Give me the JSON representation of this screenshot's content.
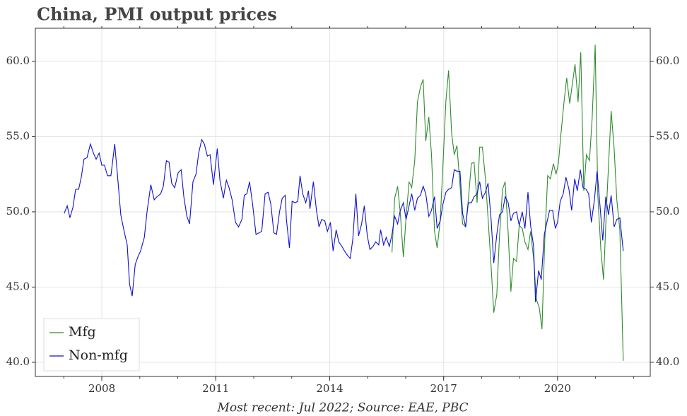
{
  "chart_data": {
    "type": "line",
    "title": "China, PMI output prices",
    "caption": "Most recent: Jul 2022; Source: EAE, PBC",
    "xlim": [
      2006.25,
      2022.44
    ],
    "xticks": [
      2008,
      2011,
      2014,
      2017,
      2020
    ],
    "xticks_minor": [
      2007,
      2008,
      2009,
      2010,
      2011,
      2012,
      2013,
      2014,
      2015,
      2016,
      2017,
      2018,
      2019,
      2020,
      2021,
      2022
    ],
    "ylim": [
      39.06,
      62.2
    ],
    "yticks": [
      {
        "value": 40,
        "label": "40.0"
      },
      {
        "value": 45,
        "label": "45.0"
      },
      {
        "value": 50,
        "label": "50.0"
      },
      {
        "value": 55,
        "label": "55.0"
      },
      {
        "value": 60,
        "label": "60.0"
      }
    ],
    "grid": true,
    "legend": "lower left",
    "series": [
      {
        "name": "Mfg",
        "color": "#2e8b2e",
        "x": [
          2015.64,
          2015.71,
          2015.79,
          2015.86,
          2015.94,
          2016.01,
          2016.09,
          2016.16,
          2016.24,
          2016.31,
          2016.39,
          2016.46,
          2016.53,
          2016.61,
          2016.68,
          2016.76,
          2016.83,
          2016.91,
          2016.98,
          2017.06,
          2017.13,
          2017.21,
          2017.28,
          2017.35,
          2017.43,
          2017.5,
          2017.58,
          2017.65,
          2017.73,
          2017.8,
          2017.88,
          2017.95,
          2018.02,
          2018.1,
          2018.17,
          2018.25,
          2018.32,
          2018.4,
          2018.47,
          2018.55,
          2018.62,
          2018.7,
          2018.77,
          2018.84,
          2018.92,
          2018.99,
          2019.07,
          2019.14,
          2019.22,
          2019.29,
          2019.37,
          2019.44,
          2019.52,
          2019.59,
          2019.66,
          2019.74,
          2019.81,
          2019.89,
          2019.96,
          2020.02,
          2020.09,
          2020.17,
          2020.24,
          2020.32,
          2020.39,
          2020.46,
          2020.54,
          2020.61,
          2020.69,
          2020.76,
          2020.84,
          2020.91,
          2020.99,
          2021.06,
          2021.14,
          2021.21,
          2021.29,
          2021.36,
          2021.41,
          2021.49,
          2021.56,
          2021.64,
          2021.73
        ],
        "values": [
          47.3,
          50.9,
          51.7,
          49.9,
          47.0,
          49.6,
          52.0,
          51.6,
          53.4,
          57.3,
          58.3,
          58.8,
          54.7,
          56.3,
          53.8,
          48.7,
          47.6,
          49.4,
          53.0,
          57.4,
          59.4,
          55.2,
          53.8,
          54.4,
          51.8,
          49.2,
          49.0,
          50.8,
          53.2,
          53.3,
          50.6,
          54.3,
          54.3,
          52.2,
          49.6,
          46.4,
          43.3,
          44.5,
          48.4,
          51.5,
          52.0,
          48.6,
          44.7,
          46.9,
          46.7,
          49.1,
          48.9,
          48.0,
          47.5,
          48.7,
          46.9,
          44.2,
          43.6,
          42.2,
          47.9,
          52.4,
          52.2,
          53.2,
          52.5,
          53.2,
          55.2,
          57.3,
          58.9,
          57.2,
          58.5,
          59.8,
          57.3,
          60.6,
          51.4,
          53.8,
          53.4,
          56.2,
          61.1,
          51.1,
          47.5,
          45.5,
          50.4,
          54.1,
          56.7,
          54.2,
          50.8,
          48.8,
          40.1
        ]
      },
      {
        "name": "Non-mfg",
        "color": "#1010d0",
        "x": [
          2007.01,
          2007.09,
          2007.16,
          2007.24,
          2007.31,
          2007.39,
          2007.46,
          2007.53,
          2007.61,
          2007.7,
          2007.78,
          2007.85,
          2007.93,
          2008.0,
          2008.07,
          2008.15,
          2008.24,
          2008.34,
          2008.41,
          2008.5,
          2008.58,
          2008.67,
          2008.73,
          2008.8,
          2008.88,
          2008.95,
          2009.02,
          2009.12,
          2009.19,
          2009.29,
          2009.38,
          2009.45,
          2009.55,
          2009.62,
          2009.7,
          2009.77,
          2009.84,
          2009.92,
          2010.01,
          2010.09,
          2010.16,
          2010.24,
          2010.31,
          2010.4,
          2010.48,
          2010.55,
          2010.63,
          2010.7,
          2010.78,
          2010.85,
          2010.94,
          2011.04,
          2011.11,
          2011.2,
          2011.28,
          2011.35,
          2011.43,
          2011.52,
          2011.6,
          2011.69,
          2011.75,
          2011.82,
          2011.89,
          2011.97,
          2012.06,
          2012.14,
          2012.21,
          2012.3,
          2012.38,
          2012.45,
          2012.53,
          2012.6,
          2012.68,
          2012.75,
          2012.83,
          2012.86,
          2012.94,
          2013.01,
          2013.09,
          2013.16,
          2013.22,
          2013.29,
          2013.37,
          2013.44,
          2013.48,
          2013.57,
          2013.65,
          2013.72,
          2013.79,
          2013.87,
          2013.94,
          2014.02,
          2014.09,
          2014.17,
          2014.24,
          2014.32,
          2014.39,
          2014.47,
          2014.54,
          2014.61,
          2014.69,
          2014.76,
          2014.84,
          2014.91,
          2014.99,
          2015.06,
          2015.14,
          2015.21,
          2015.29,
          2015.34,
          2015.42,
          2015.49,
          2015.57,
          2015.64,
          2015.71,
          2015.79,
          2015.86,
          2015.94,
          2016.01,
          2016.09,
          2016.16,
          2016.24,
          2016.31,
          2016.39,
          2016.46,
          2016.53,
          2016.61,
          2016.68,
          2016.76,
          2016.83,
          2016.91,
          2016.98,
          2017.06,
          2017.13,
          2017.21,
          2017.28,
          2017.35,
          2017.43,
          2017.5,
          2017.58,
          2017.65,
          2017.73,
          2017.8,
          2017.88,
          2017.95,
          2018.02,
          2018.1,
          2018.17,
          2018.25,
          2018.32,
          2018.4,
          2018.47,
          2018.55,
          2018.62,
          2018.7,
          2018.77,
          2018.84,
          2018.92,
          2018.99,
          2019.07,
          2019.14,
          2019.22,
          2019.29,
          2019.37,
          2019.42,
          2019.5,
          2019.57,
          2019.65,
          2019.72,
          2019.79,
          2019.87,
          2019.94,
          2020.0,
          2020.07,
          2020.15,
          2020.22,
          2020.3,
          2020.37,
          2020.45,
          2020.52,
          2020.6,
          2020.67,
          2020.75,
          2020.82,
          2020.89,
          2020.97,
          2021.04,
          2021.12,
          2021.19,
          2021.27,
          2021.34,
          2021.41,
          2021.49,
          2021.56,
          2021.64,
          2021.73
        ],
        "values": [
          49.9,
          50.4,
          49.6,
          50.3,
          51.5,
          51.5,
          52.3,
          53.5,
          53.6,
          54.5,
          53.9,
          53.5,
          53.9,
          53.1,
          53.1,
          52.4,
          52.4,
          54.5,
          52.5,
          49.8,
          48.8,
          47.8,
          45.2,
          44.4,
          46.5,
          47.0,
          47.4,
          48.3,
          50.0,
          51.8,
          50.8,
          51.0,
          51.2,
          51.7,
          53.4,
          53.3,
          51.9,
          51.6,
          52.6,
          52.8,
          51.0,
          49.7,
          49.2,
          52.0,
          52.5,
          53.9,
          54.8,
          54.5,
          53.7,
          53.8,
          51.8,
          54.2,
          52.1,
          50.9,
          52.1,
          51.6,
          50.8,
          49.3,
          49.0,
          49.5,
          51.1,
          51.2,
          52.0,
          50.5,
          48.5,
          48.6,
          48.7,
          51.2,
          51.3,
          50.5,
          48.6,
          48.5,
          50.0,
          50.9,
          51.1,
          49.5,
          47.6,
          50.7,
          50.6,
          50.7,
          52.4,
          51.2,
          50.6,
          51.4,
          50.2,
          52.0,
          50.1,
          49.0,
          49.5,
          49.4,
          48.7,
          49.3,
          47.4,
          48.8,
          48.0,
          47.7,
          47.4,
          47.1,
          46.9,
          48.2,
          51.2,
          48.4,
          49.2,
          50.4,
          48.4,
          47.5,
          47.7,
          48.0,
          47.8,
          48.8,
          47.8,
          48.3,
          47.7,
          48.5,
          49.7,
          49.2,
          50.1,
          50.6,
          49.5,
          50.4,
          51.2,
          50.1,
          50.9,
          51.1,
          51.7,
          51.2,
          49.7,
          50.1,
          51.0,
          48.9,
          49.4,
          50.5,
          51.3,
          51.5,
          51.6,
          52.8,
          52.7,
          52.7,
          49.9,
          49.0,
          50.6,
          50.6,
          51.0,
          51.2,
          52.0,
          50.9,
          51.3,
          51.9,
          49.5,
          46.6,
          48.5,
          49.8,
          50.0,
          51.0,
          50.6,
          49.4,
          49.9,
          50.0,
          49.1,
          50.0,
          48.9,
          51.3,
          49.1,
          47.7,
          44.0,
          46.1,
          45.5,
          48.5,
          49.3,
          50.1,
          50.1,
          48.9,
          49.3,
          50.7,
          51.2,
          52.3,
          51.5,
          50.1,
          52.2,
          51.4,
          52.8,
          51.6,
          51.5,
          51.2,
          49.3,
          50.8,
          52.7,
          50.3,
          48.1,
          51.0,
          49.8,
          51.1,
          49.0,
          49.5,
          49.6,
          47.4
        ]
      }
    ]
  }
}
